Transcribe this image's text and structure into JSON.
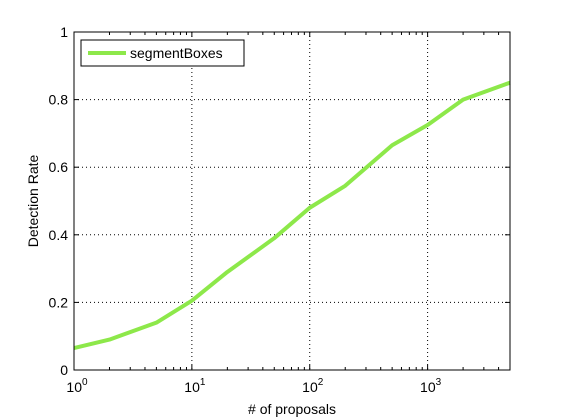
{
  "chart_data": {
    "type": "line",
    "title": "",
    "xlabel": "# of proposals",
    "ylabel": "Detection Rate",
    "xscale": "log",
    "xlim": [
      1,
      5000
    ],
    "ylim": [
      0,
      1
    ],
    "x_ticks": [
      {
        "value": 1,
        "base": "10",
        "exp": "0"
      },
      {
        "value": 10,
        "base": "10",
        "exp": "1"
      },
      {
        "value": 100,
        "base": "10",
        "exp": "2"
      },
      {
        "value": 1000,
        "base": "10",
        "exp": "3"
      }
    ],
    "y_ticks": [
      {
        "value": 0,
        "label": "0"
      },
      {
        "value": 0.2,
        "label": "0.2"
      },
      {
        "value": 0.4,
        "label": "0.4"
      },
      {
        "value": 0.6,
        "label": "0.6"
      },
      {
        "value": 0.8,
        "label": "0.8"
      },
      {
        "value": 1,
        "label": "1"
      }
    ],
    "grid": true,
    "legend_position": "top-left",
    "series": [
      {
        "name": "segmentBoxes",
        "color": "#8de84a",
        "x": [
          1,
          2,
          5,
          10,
          20,
          50,
          100,
          200,
          500,
          1000,
          2000,
          5000
        ],
        "y": [
          0.065,
          0.09,
          0.14,
          0.205,
          0.29,
          0.39,
          0.48,
          0.545,
          0.665,
          0.725,
          0.8,
          0.85
        ]
      }
    ]
  }
}
